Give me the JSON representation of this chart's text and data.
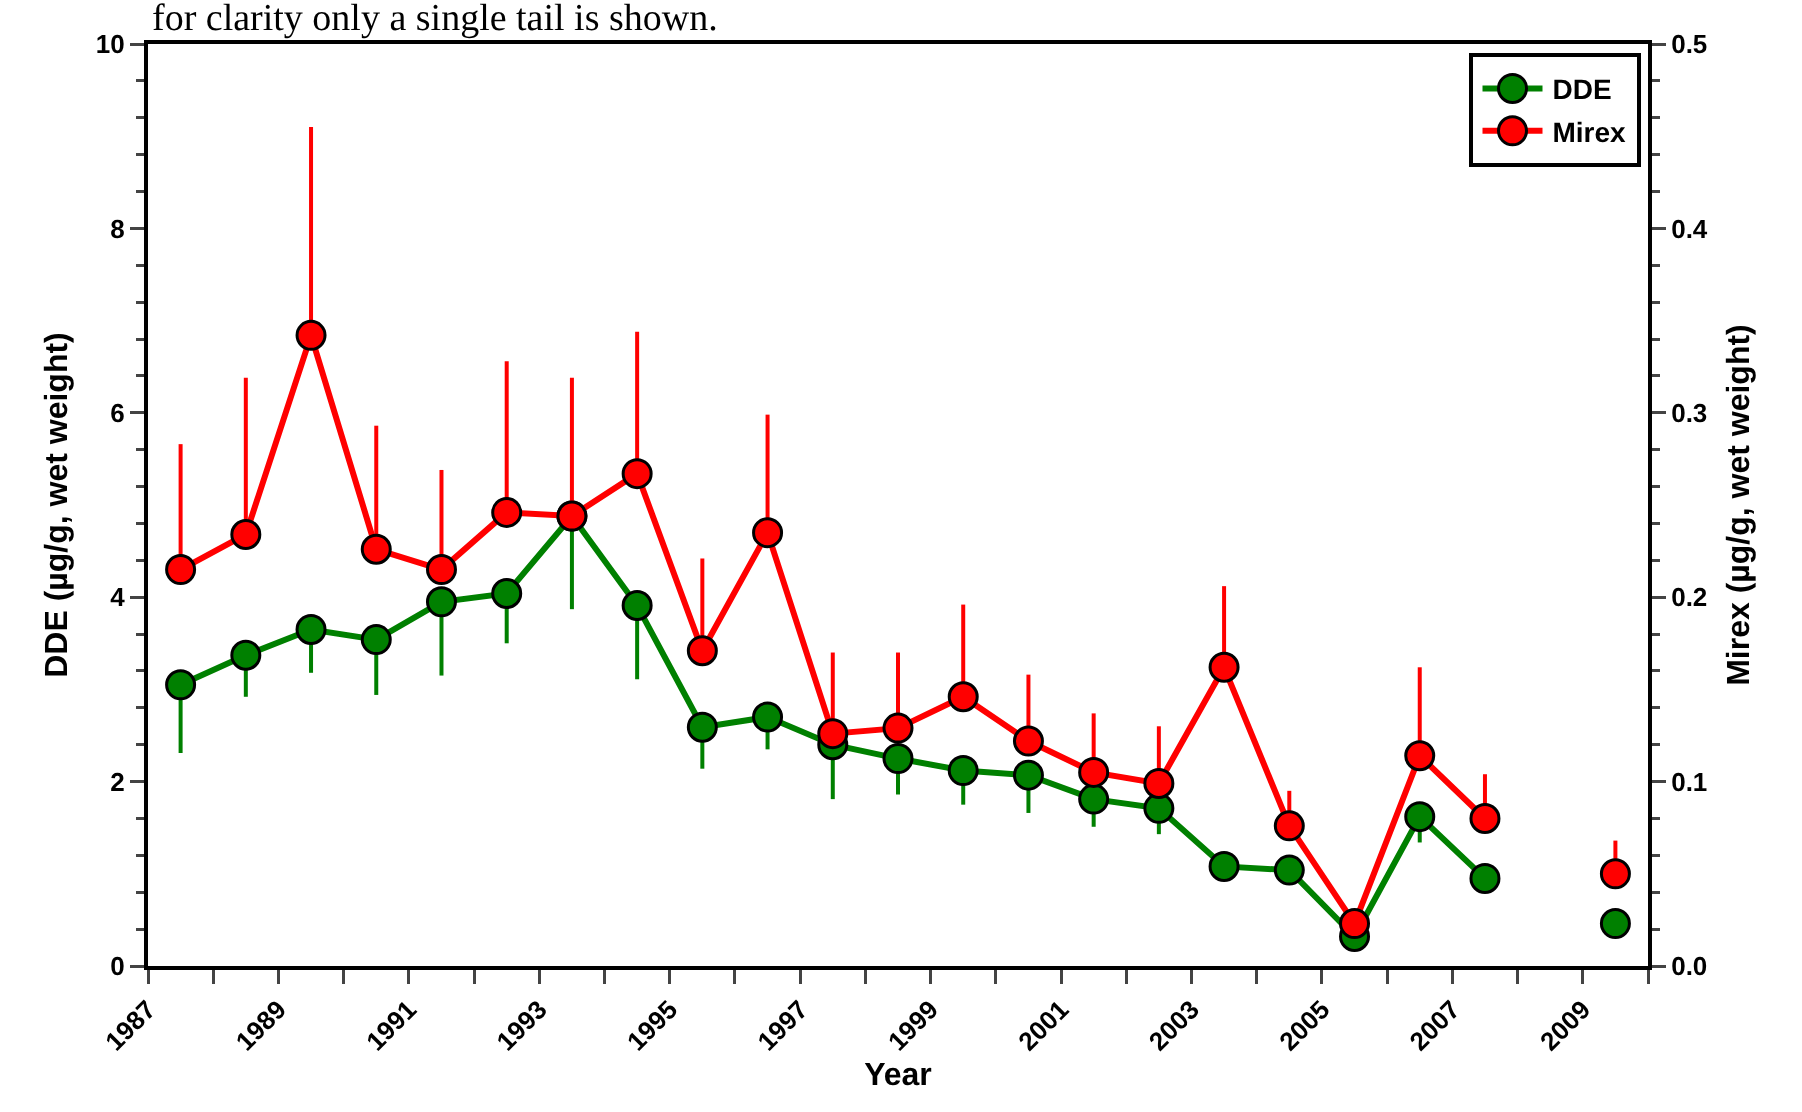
{
  "chart_data": {
    "type": "line",
    "xlabel": "Year",
    "ylabel": "DDE (µg/g, wet weight)",
    "y2label": "Mirex (µg/g, wet weight)",
    "annotations": [
      "for clarity only a single tail is shown."
    ],
    "x": [
      1987.5,
      1988.5,
      1989.5,
      1990.5,
      1991.5,
      1992.5,
      1993.5,
      1994.5,
      1995.5,
      1996.5,
      1997.5,
      1998.5,
      1999.5,
      2000.5,
      2001.5,
      2002.5,
      2003.5,
      2004.5,
      2005.5,
      2006.5,
      2007.5,
      2008.5,
      2009.5
    ],
    "series": [
      {
        "name": "DDE",
        "color": "#008000",
        "values": [
          3.05,
          3.37,
          3.65,
          3.54,
          3.95,
          4.04,
          4.88,
          3.91,
          2.59,
          2.7,
          2.4,
          2.25,
          2.12,
          2.07,
          1.81,
          1.71,
          1.08,
          1.04,
          0.32,
          1.62,
          0.95,
          null,
          0.46
        ],
        "errors": [
          [
            2.31,
            3.05
          ],
          [
            2.92,
            3.37
          ],
          [
            3.18,
            3.65
          ],
          [
            2.94,
            3.54
          ],
          [
            3.15,
            3.95
          ],
          [
            3.5,
            4.04
          ],
          [
            3.87,
            4.88
          ],
          [
            3.11,
            3.91
          ],
          [
            2.14,
            2.59
          ],
          [
            2.35,
            2.7
          ],
          [
            1.81,
            2.4
          ],
          [
            1.86,
            2.25
          ],
          [
            1.75,
            2.12
          ],
          [
            1.66,
            2.07
          ],
          [
            1.51,
            1.81
          ],
          [
            1.43,
            1.71
          ],
          null,
          null,
          null,
          [
            1.34,
            1.62
          ],
          null,
          null,
          null
        ]
      },
      {
        "name": "Mirex",
        "color": "#ff0000",
        "axis": "y2",
        "values": [
          0.215,
          0.234,
          0.342,
          0.226,
          0.215,
          0.246,
          0.244,
          0.267,
          0.171,
          0.235,
          0.126,
          0.129,
          0.146,
          0.122,
          0.105,
          0.099,
          0.162,
          0.076,
          0.023,
          0.114,
          0.08,
          null,
          0.05
        ],
        "errors": [
          [
            0.215,
            0.283
          ],
          [
            0.234,
            0.319
          ],
          [
            0.342,
            0.455
          ],
          [
            0.226,
            0.293
          ],
          [
            0.215,
            0.269
          ],
          [
            0.246,
            0.328
          ],
          [
            0.244,
            0.319
          ],
          [
            0.267,
            0.344
          ],
          [
            0.171,
            0.221
          ],
          [
            0.235,
            0.299
          ],
          [
            0.126,
            0.17
          ],
          [
            0.129,
            0.17
          ],
          [
            0.146,
            0.196
          ],
          [
            0.122,
            0.158
          ],
          [
            0.105,
            0.137
          ],
          [
            0.099,
            0.13
          ],
          [
            0.162,
            0.206
          ],
          [
            0.076,
            0.095
          ],
          null,
          [
            0.114,
            0.162
          ],
          [
            0.08,
            0.104
          ],
          null,
          [
            0.05,
            0.068
          ]
        ]
      }
    ],
    "xlim": [
      1987,
      2010
    ],
    "xticks": [
      {
        "value": 1987,
        "label": "1987"
      },
      {
        "value": 1988,
        "label": null
      },
      {
        "value": 1989,
        "label": "1989"
      },
      {
        "value": 1990,
        "label": null
      },
      {
        "value": 1991,
        "label": "1991"
      },
      {
        "value": 1992,
        "label": null
      },
      {
        "value": 1993,
        "label": "1993"
      },
      {
        "value": 1994,
        "label": null
      },
      {
        "value": 1995,
        "label": "1995"
      },
      {
        "value": 1996,
        "label": null
      },
      {
        "value": 1997,
        "label": "1997"
      },
      {
        "value": 1998,
        "label": null
      },
      {
        "value": 1999,
        "label": "1999"
      },
      {
        "value": 2000,
        "label": null
      },
      {
        "value": 2001,
        "label": "2001"
      },
      {
        "value": 2002,
        "label": null
      },
      {
        "value": 2003,
        "label": "2003"
      },
      {
        "value": 2004,
        "label": null
      },
      {
        "value": 2005,
        "label": "2005"
      },
      {
        "value": 2006,
        "label": null
      },
      {
        "value": 2007,
        "label": "2007"
      },
      {
        "value": 2008,
        "label": null
      },
      {
        "value": 2009,
        "label": "2009"
      },
      {
        "value": 2010,
        "label": null
      }
    ],
    "ylim": [
      0,
      10
    ],
    "yticks": [
      0,
      2,
      4,
      6,
      8,
      10
    ],
    "y2lim": [
      0,
      0.5
    ],
    "y2ticks": [
      {
        "value": 0,
        "label": "0.0"
      },
      0.1,
      0.2,
      0.3,
      0.4,
      0.5
    ],
    "grid": false,
    "legend": "top right",
    "marker": "circle",
    "line_style": "solid"
  }
}
